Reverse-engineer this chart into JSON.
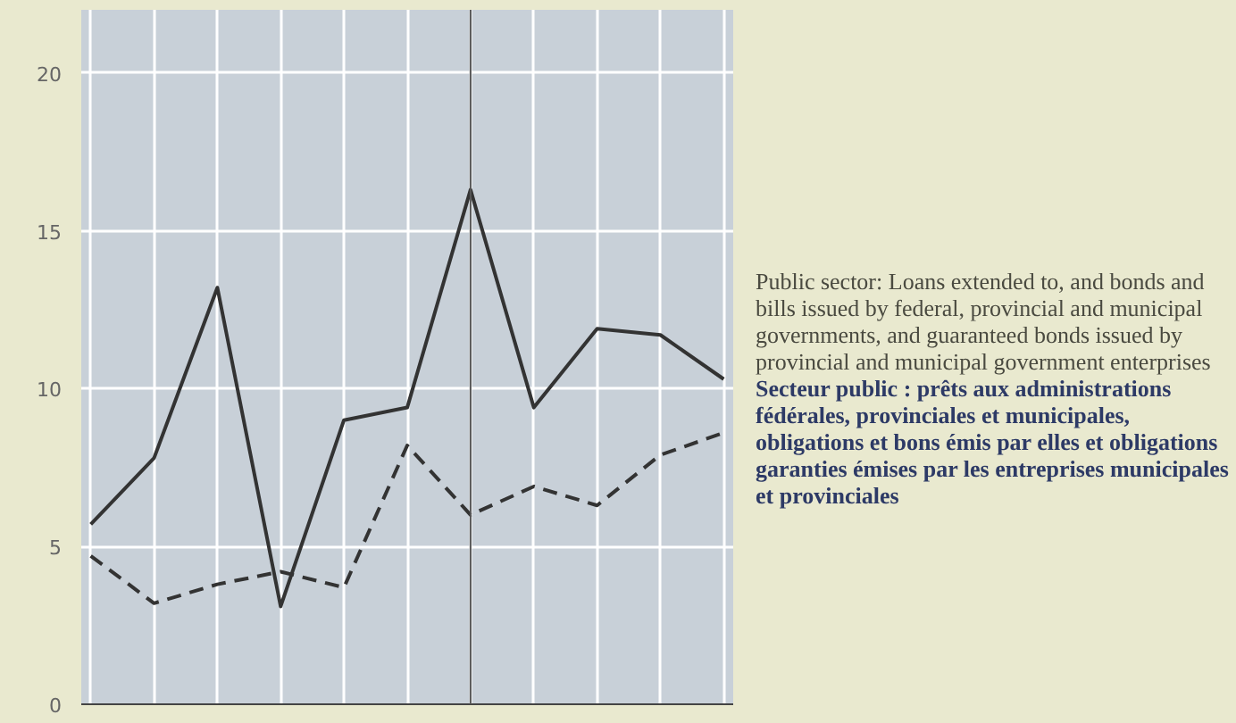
{
  "chart_data": {
    "type": "line",
    "categories": [
      null,
      null,
      null,
      null,
      null,
      null,
      null,
      null,
      null,
      null,
      null
    ],
    "series": [
      {
        "color": "#333333",
        "line_style": "solid",
        "values": [
          5.7,
          7.8,
          13.2,
          3.1,
          9.0,
          9.4,
          16.3,
          9.4,
          11.9,
          11.7,
          10.3
        ]
      },
      {
        "color": "#333333",
        "line_style": "dashed",
        "values": [
          4.7,
          3.2,
          3.8,
          4.2,
          3.7,
          8.2,
          6.0,
          6.9,
          6.3,
          7.9,
          8.6
        ]
      }
    ],
    "ylim": [
      0,
      22
    ],
    "yticks": [
      0,
      5,
      10,
      15,
      20
    ],
    "grid": true,
    "marker": "none",
    "tick_labels": "y",
    "annotations": [
      "Public sector: Loans extended to, and bonds and bills issued by federal, provincial and municipal governments, and guaranteed bonds issued by provincial and municipal government enterprises",
      "Secteur public : prêts aux administrations fédérales, provinciales et municipales, obligations et bons émis par elles et obligations garanties émises par les entreprises municipales et provinciales"
    ]
  }
}
